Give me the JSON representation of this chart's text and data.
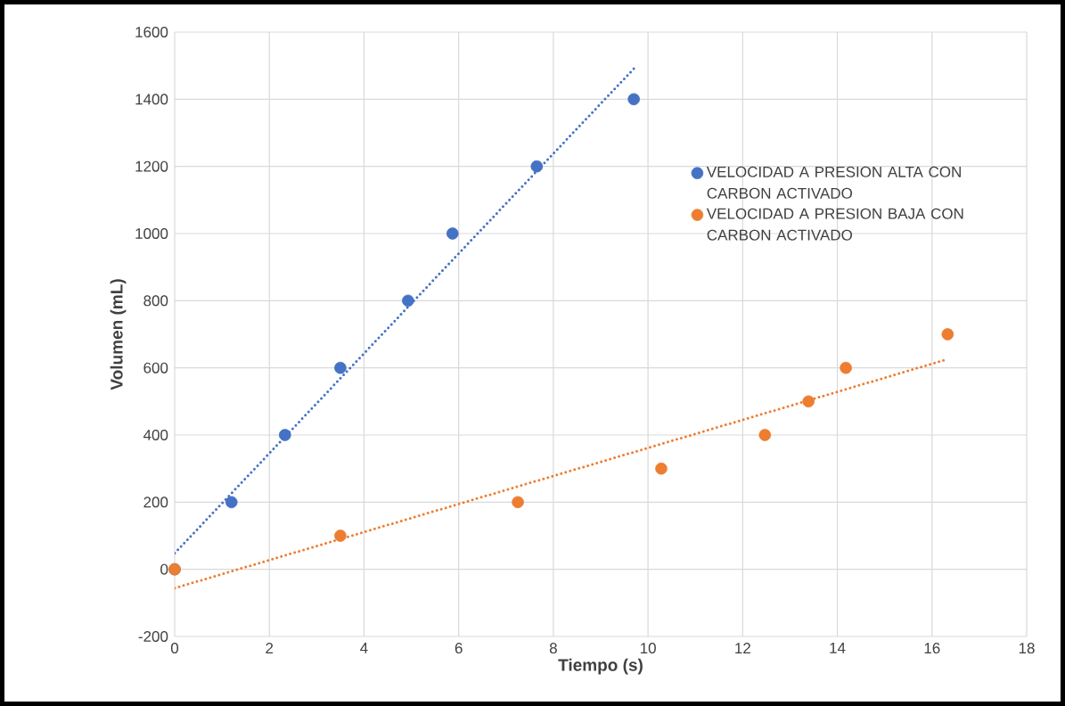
{
  "chart_data": {
    "type": "scatter",
    "xlabel": "Tiempo (s)",
    "ylabel": "Volumen (mL)",
    "xlim": [
      0,
      18
    ],
    "ylim": [
      -200,
      1600
    ],
    "xticks": [
      0,
      2,
      4,
      6,
      8,
      10,
      12,
      14,
      16,
      18
    ],
    "yticks": [
      -200,
      0,
      200,
      400,
      600,
      800,
      1000,
      1200,
      1400,
      1600
    ],
    "grid": true,
    "legend": "right",
    "series": [
      {
        "name": "VELOCIDAD A PRESION ALTA CON CARBON ACTIVADO",
        "marker": "circle",
        "color": "#4472c4",
        "x": [
          0,
          1.2,
          2.33,
          3.5,
          4.93,
          5.87,
          7.65,
          9.7
        ],
        "values": [
          0,
          200,
          400,
          600,
          800,
          1000,
          1200,
          1400
        ]
      },
      {
        "name": "VELOCIDAD A PRESION BAJA CON CARBON ACTIVADO",
        "marker": "circle",
        "color": "#ed7d31",
        "x": [
          0,
          3.5,
          7.25,
          10.28,
          12.47,
          13.39,
          14.18,
          16.33
        ],
        "values": [
          0,
          100,
          200,
          300,
          400,
          500,
          600,
          700
        ]
      },
      {
        "type": "line",
        "marker": "none",
        "line_style": "dotted",
        "color": "#4472c4",
        "x": [
          0,
          9.7
        ],
        "values": [
          48,
          1491
        ]
      },
      {
        "type": "line",
        "marker": "none",
        "line_style": "dotted",
        "color": "#ed7d31",
        "x": [
          0,
          16.33
        ],
        "values": [
          -56,
          626
        ]
      }
    ]
  }
}
